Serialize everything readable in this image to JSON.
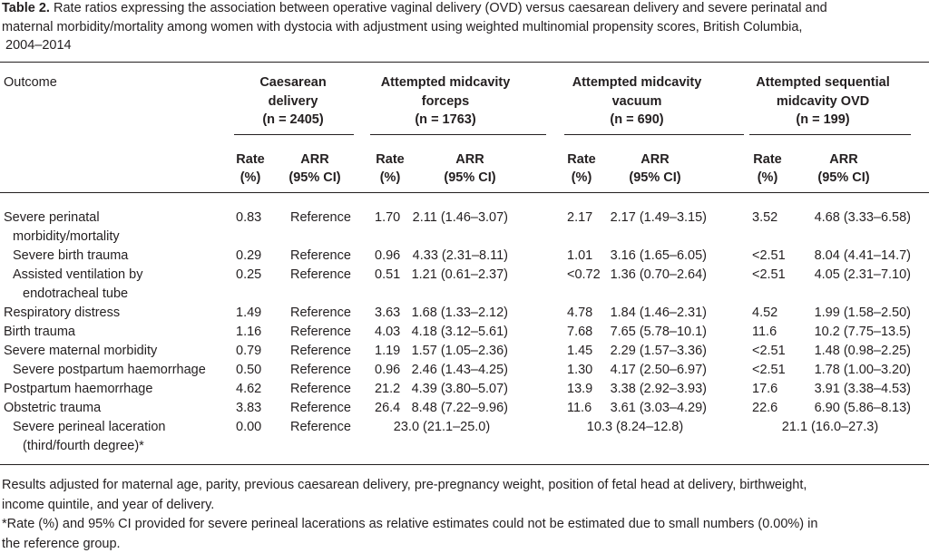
{
  "caption": {
    "label": "Table 2.",
    "lines": [
      "Rate ratios expressing the association between operative vaginal delivery (OVD) versus caesarean delivery and severe perinatal and",
      "maternal morbidity/mortality among women with dystocia with adjustment using weighted multinomial propensity scores, British Columbia,",
      "2004–2014"
    ]
  },
  "table": {
    "stub_header": "Outcome",
    "groups": [
      {
        "name": [
          "Caesarean",
          "delivery"
        ],
        "n": "(n = 2405)",
        "columns": [
          [
            "Rate",
            "(%)"
          ],
          [
            "ARR",
            "(95% CI)"
          ]
        ]
      },
      {
        "name": [
          "Attempted midcavity",
          "forceps"
        ],
        "n": "(n = 1763)",
        "columns": [
          [
            "Rate",
            "(%)"
          ],
          [
            "ARR",
            "(95% CI)"
          ]
        ]
      },
      {
        "name": [
          "Attempted midcavity",
          "vacuum"
        ],
        "n": "(n = 690)",
        "columns": [
          [
            "Rate",
            "(%)"
          ],
          [
            "ARR",
            "(95% CI)"
          ]
        ]
      },
      {
        "name": [
          "Attempted sequential",
          "midcavity OVD"
        ],
        "n": "(n = 199)",
        "columns": [
          [
            "Rate",
            "(%)"
          ],
          [
            "ARR",
            "(95% CI)"
          ]
        ]
      }
    ],
    "rows": [
      {
        "label": [
          "Severe perinatal",
          "morbidity/mortality"
        ],
        "indent": false,
        "cells": [
          "0.83",
          "Reference",
          "1.70",
          "2.11 (1.46–3.07)",
          "2.17",
          "2.17 (1.49–3.15)",
          "3.52",
          "4.68 (3.33–6.58)"
        ]
      },
      {
        "label": [
          "Severe birth trauma"
        ],
        "indent": true,
        "cells": [
          "0.29",
          "Reference",
          "0.96",
          "4.33 (2.31–8.11)",
          "1.01",
          "3.16 (1.65–6.05)",
          "<2.51",
          "8.04 (4.41–14.7)"
        ]
      },
      {
        "label": [
          "Assisted ventilation by",
          "endotracheal tube"
        ],
        "indent": true,
        "cells": [
          "0.25",
          "Reference",
          "0.51",
          "1.21 (0.61–2.37)",
          "<0.72",
          "1.36 (0.70–2.64)",
          "<2.51",
          "4.05 (2.31–7.10)"
        ]
      },
      {
        "label": [
          "Respiratory distress"
        ],
        "indent": false,
        "cells": [
          "1.49",
          "Reference",
          "3.63",
          "1.68 (1.33–2.12)",
          "4.78",
          "1.84 (1.46–2.31)",
          "4.52",
          "1.99 (1.58–2.50)"
        ]
      },
      {
        "label": [
          "Birth trauma"
        ],
        "indent": false,
        "cells": [
          "1.16",
          "Reference",
          "4.03",
          "4.18 (3.12–5.61)",
          "7.68",
          "7.65 (5.78–10.1)",
          "11.6",
          "10.2 (7.75–13.5)"
        ]
      },
      {
        "label": [
          "Severe maternal morbidity"
        ],
        "indent": false,
        "cells": [
          "0.79",
          "Reference",
          "1.19",
          "1.57 (1.05–2.36)",
          "1.45",
          "2.29 (1.57–3.36)",
          "<2.51",
          "1.48 (0.98–2.25)"
        ]
      },
      {
        "label": [
          "Severe postpartum haemorrhage"
        ],
        "indent": true,
        "cells": [
          "0.50",
          "Reference",
          "0.96",
          "2.46 (1.43–4.25)",
          "1.30",
          "4.17 (2.50–6.97)",
          "<2.51",
          "1.78 (1.00–3.20)"
        ]
      },
      {
        "label": [
          "Postpartum haemorrhage"
        ],
        "indent": false,
        "cells": [
          "4.62",
          "Reference",
          "21.2",
          "4.39 (3.80–5.07)",
          "13.9",
          "3.38 (2.92–3.93)",
          "17.6",
          "3.91 (3.38–4.53)"
        ]
      },
      {
        "label": [
          "Obstetric trauma"
        ],
        "indent": false,
        "cells": [
          "3.83",
          "Reference",
          "26.4",
          "8.48 (7.22–9.96)",
          "11.6",
          "3.61 (3.03–4.29)",
          "22.6",
          "6.90 (5.86–8.13)"
        ]
      },
      {
        "label": [
          "Severe perineal laceration",
          "(third/fourth degree)*"
        ],
        "indent": true,
        "cells": [
          "0.00",
          "Reference",
          "23.0 (21.1–25.0)",
          "10.3 (8.24–12.8)",
          "21.1 (16.0–27.3)"
        ]
      }
    ]
  },
  "footnotes": [
    [
      "Results adjusted for maternal age, parity, previous caesarean delivery, pre-pregnancy weight, position of fetal head at delivery, birthweight,",
      "income quintile, and year of delivery."
    ],
    [
      "*Rate (%) and 95% CI provided for severe perineal lacerations as relative estimates could not be estimated due to small numbers (0.00%) in",
      "the reference group."
    ]
  ]
}
